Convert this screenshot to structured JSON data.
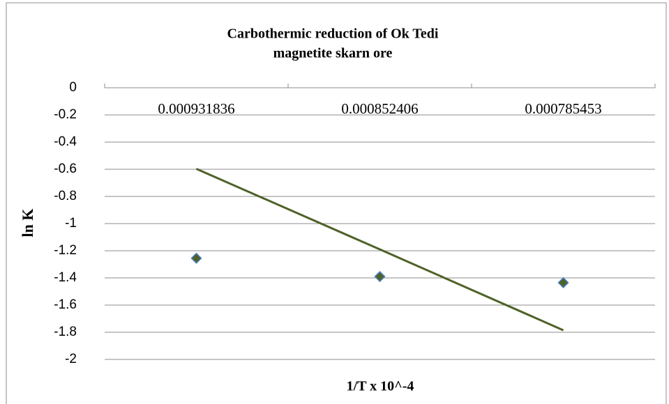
{
  "chart_data": {
    "type": "scatter",
    "title": [
      "Carbothermic reduction of Ok Tedi",
      "magnetite skarn ore"
    ],
    "x_label": "1/T x 10^-4",
    "y_label": "ln K",
    "categories": [
      "0.000931836",
      "0.000852406",
      "0.000785453"
    ],
    "values": [
      -1.255,
      -1.39,
      -1.435
    ],
    "trendline": [
      -0.597,
      -1.19,
      -1.785
    ],
    "marker_color": "#4f6228",
    "marker_edge": "#4a7ebb",
    "trend_color": "#4f6228",
    "ylim": [
      -2,
      0
    ],
    "yticks": [
      0,
      -0.2,
      -0.4,
      -0.6,
      -0.8,
      -1,
      -1.2,
      -1.4,
      -1.6,
      -1.8,
      -2
    ],
    "grid": true
  }
}
